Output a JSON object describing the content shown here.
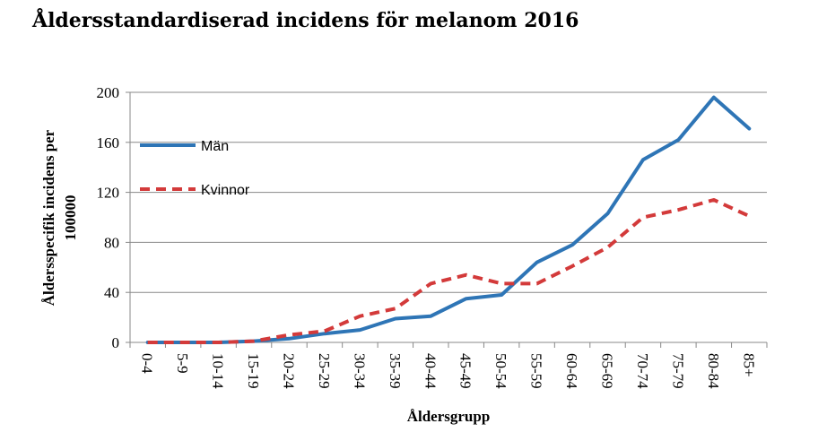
{
  "chart_data": {
    "type": "line",
    "title": "Åldersstandardiserad incidens för melanom 2016",
    "xlabel": "Åldersgrupp",
    "ylabel_lines": [
      "Åldersspecifik incidens per",
      "100000"
    ],
    "categories": [
      "0-4",
      "5-9",
      "10-14",
      "15-19",
      "20-24",
      "25-29",
      "30-34",
      "35-39",
      "40-44",
      "45-49",
      "50-54",
      "55-59",
      "60-64",
      "65-69",
      "70-74",
      "75-79",
      "80-84",
      "85+"
    ],
    "ylim": [
      0,
      200
    ],
    "yticks": [
      0,
      40,
      80,
      120,
      160,
      200
    ],
    "grid": true,
    "legend_position": "top-left",
    "series": [
      {
        "name": "Män",
        "color": "#2e75b6",
        "style": "solid",
        "values": [
          0,
          0,
          0,
          1,
          3,
          7,
          10,
          19,
          21,
          35,
          38,
          64,
          78,
          103,
          146,
          162,
          196,
          171
        ]
      },
      {
        "name": "Kvinnor",
        "color": "#d33a3a",
        "style": "dashed",
        "values": [
          0,
          0,
          0,
          1,
          6,
          9,
          21,
          27,
          47,
          54,
          47,
          47,
          61,
          76,
          100,
          106,
          114,
          101
        ]
      }
    ]
  }
}
